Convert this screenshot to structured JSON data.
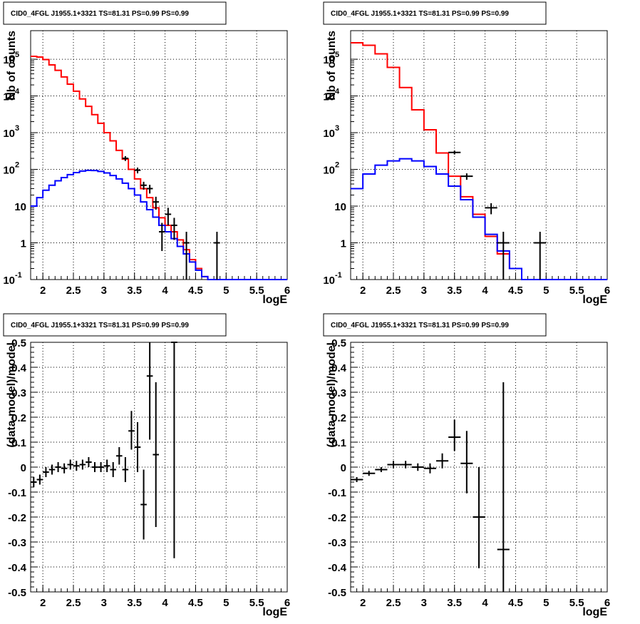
{
  "chart_data": [
    {
      "type": "line",
      "title": "CID0_4FGL J1955.1+3321 TS=81.31 PS=0.99 PS=0.99",
      "xlabel": "logE",
      "ylabel": "Nb of counts",
      "xlim": [
        1.8,
        6.0
      ],
      "ylim": [
        0.1,
        600000
      ],
      "yscale": "log",
      "grid": true,
      "x_ticks": [
        "2",
        "2.5",
        "3",
        "3.5",
        "4",
        "4.5",
        "5",
        "5.5",
        "6"
      ],
      "y_ticks": [
        "10^-1",
        "1",
        "10",
        "10^2",
        "10^3",
        "10^4",
        "10^5"
      ],
      "bin_edges": [
        1.8,
        1.9,
        2.0,
        2.1,
        2.2,
        2.3,
        2.4,
        2.5,
        2.6,
        2.7,
        2.8,
        2.9,
        3.0,
        3.1,
        3.2,
        3.3,
        3.4,
        3.5,
        3.6,
        3.7,
        3.8,
        3.9,
        4.0,
        4.1,
        4.2,
        4.3,
        4.4,
        4.5,
        4.6,
        4.7,
        4.8,
        4.9,
        5.0,
        5.1,
        5.2,
        5.3,
        5.4,
        5.5,
        5.6,
        5.7,
        5.8,
        5.9,
        6.0
      ],
      "series": [
        {
          "color": "#ff0000",
          "values": [
            120000,
            115000,
            98000,
            70000,
            50000,
            33000,
            21000,
            13500,
            8300,
            5200,
            3100,
            1800,
            1000,
            600,
            330,
            190,
            100,
            55,
            30,
            17,
            9,
            4.8,
            3.0,
            2.0,
            1.2,
            0.65,
            0.35,
            0.2,
            0.12,
            0.1,
            0.1,
            0.1,
            0.1,
            0.1,
            0.1,
            0.1,
            0.1,
            0.1,
            0.1,
            0.1,
            0.1,
            0.1
          ]
        },
        {
          "color": "#0000ff",
          "values": [
            10,
            17,
            27,
            37,
            49,
            60,
            72,
            82,
            90,
            94,
            93,
            88,
            80,
            68,
            55,
            42,
            30,
            20,
            13,
            8,
            5,
            3,
            2,
            1.3,
            0.8,
            0.5,
            0.3,
            0.18,
            0.12,
            0.1,
            0.1,
            0.1,
            0.1,
            0.1,
            0.1,
            0.1,
            0.1,
            0.1,
            0.1,
            0.1,
            0.1,
            0.1
          ]
        }
      ],
      "points": [
        {
          "x": 3.35,
          "y": 200,
          "lo": 170,
          "hi": 230
        },
        {
          "x": 3.55,
          "y": 95,
          "lo": 78,
          "hi": 112
        },
        {
          "x": 3.65,
          "y": 37,
          "lo": 28,
          "hi": 46
        },
        {
          "x": 3.75,
          "y": 30,
          "lo": 22,
          "hi": 38
        },
        {
          "x": 3.85,
          "y": 13,
          "lo": 8,
          "hi": 18
        },
        {
          "x": 3.95,
          "y": 2,
          "lo": 0.6,
          "hi": 3.5
        },
        {
          "x": 4.05,
          "y": 6,
          "lo": 3,
          "hi": 9
        },
        {
          "x": 4.15,
          "y": 3,
          "lo": 1.2,
          "hi": 4.8
        },
        {
          "x": 4.35,
          "y": 1,
          "lo": 0.1,
          "hi": 2
        },
        {
          "x": 4.85,
          "y": 1,
          "lo": 0.1,
          "hi": 2
        }
      ]
    },
    {
      "type": "line",
      "title": "CID0_4FGL J1955.1+3321 TS=81.31 PS=0.99 PS=0.99",
      "xlabel": "logE",
      "ylabel": "Nb of counts",
      "xlim": [
        1.8,
        6.0
      ],
      "ylim": [
        0.1,
        600000
      ],
      "yscale": "log",
      "grid": true,
      "x_ticks": [
        "2",
        "2.5",
        "3",
        "3.5",
        "4",
        "4.5",
        "5",
        "5.5",
        "6"
      ],
      "y_ticks": [
        "10^-1",
        "1",
        "10",
        "10^2",
        "10^3",
        "10^4",
        "10^5"
      ],
      "bin_edges": [
        1.8,
        2.0,
        2.2,
        2.4,
        2.6,
        2.8,
        3.0,
        3.2,
        3.4,
        3.6,
        3.8,
        4.0,
        4.2,
        4.4,
        4.6,
        4.8,
        5.0,
        5.2,
        5.4,
        5.6,
        5.8,
        6.0
      ],
      "series": [
        {
          "color": "#ff0000",
          "values": [
            280000,
            240000,
            140000,
            60000,
            17000,
            4200,
            1200,
            280,
            65,
            18,
            6,
            1.5,
            0.5,
            0.2,
            0.1,
            0.1,
            0.1,
            0.1,
            0.1,
            0.1,
            0.1
          ]
        },
        {
          "color": "#0000ff",
          "values": [
            30,
            75,
            130,
            170,
            195,
            170,
            120,
            75,
            35,
            15,
            5,
            1.7,
            0.6,
            0.2,
            0.1,
            0.1,
            0.1,
            0.1,
            0.1,
            0.1,
            0.1
          ]
        }
      ],
      "points": [
        {
          "x": 3.5,
          "y": 290,
          "lo": 255,
          "hi": 325
        },
        {
          "x": 3.7,
          "y": 65,
          "lo": 52,
          "hi": 78
        },
        {
          "x": 4.1,
          "y": 9,
          "lo": 6,
          "hi": 12
        },
        {
          "x": 4.3,
          "y": 1,
          "lo": 0.1,
          "hi": 2
        },
        {
          "x": 4.9,
          "y": 1,
          "lo": 0.1,
          "hi": 2
        }
      ]
    },
    {
      "type": "scatter",
      "title": "CID0_4FGL J1955.1+3321 TS=81.31 PS=0.99 PS=0.99",
      "xlabel": "logE",
      "ylabel": "(data-model)/model",
      "xlim": [
        1.8,
        6.0
      ],
      "ylim": [
        -0.5,
        0.5
      ],
      "grid": true,
      "x_ticks": [
        "2",
        "2.5",
        "3",
        "3.5",
        "4",
        "4.5",
        "5",
        "5.5",
        "6"
      ],
      "y_ticks": [
        "-0.5",
        "-0.4",
        "-0.3",
        "-0.2",
        "-0.1",
        "0",
        "0.1",
        "0.2",
        "0.3",
        "0.4",
        "0.5"
      ],
      "points": [
        {
          "x": 1.85,
          "y": -0.06,
          "lo": -0.08,
          "hi": -0.04,
          "xw": 0.05
        },
        {
          "x": 1.95,
          "y": -0.05,
          "lo": -0.07,
          "hi": -0.03,
          "xw": 0.05
        },
        {
          "x": 2.05,
          "y": -0.02,
          "lo": -0.04,
          "hi": 0.0,
          "xw": 0.05
        },
        {
          "x": 2.15,
          "y": -0.01,
          "lo": -0.03,
          "hi": 0.01,
          "xw": 0.05
        },
        {
          "x": 2.25,
          "y": 0.0,
          "lo": -0.02,
          "hi": 0.02,
          "xw": 0.05
        },
        {
          "x": 2.35,
          "y": -0.005,
          "lo": -0.025,
          "hi": 0.015,
          "xw": 0.05
        },
        {
          "x": 2.45,
          "y": 0.01,
          "lo": -0.01,
          "hi": 0.03,
          "xw": 0.05
        },
        {
          "x": 2.55,
          "y": 0.005,
          "lo": -0.015,
          "hi": 0.025,
          "xw": 0.05
        },
        {
          "x": 2.65,
          "y": 0.01,
          "lo": -0.01,
          "hi": 0.03,
          "xw": 0.05
        },
        {
          "x": 2.75,
          "y": 0.02,
          "lo": 0.0,
          "hi": 0.04,
          "xw": 0.05
        },
        {
          "x": 2.85,
          "y": 0.0,
          "lo": -0.02,
          "hi": 0.02,
          "xw": 0.05
        },
        {
          "x": 2.95,
          "y": 0.0,
          "lo": -0.02,
          "hi": 0.02,
          "xw": 0.05
        },
        {
          "x": 3.05,
          "y": 0.005,
          "lo": -0.02,
          "hi": 0.03,
          "xw": 0.05
        },
        {
          "x": 3.15,
          "y": -0.01,
          "lo": -0.04,
          "hi": 0.02,
          "xw": 0.05
        },
        {
          "x": 3.25,
          "y": 0.045,
          "lo": 0.01,
          "hi": 0.08,
          "xw": 0.05
        },
        {
          "x": 3.35,
          "y": -0.01,
          "lo": -0.06,
          "hi": 0.04,
          "xw": 0.05
        },
        {
          "x": 3.45,
          "y": 0.145,
          "lo": 0.07,
          "hi": 0.225,
          "xw": 0.05
        },
        {
          "x": 3.55,
          "y": 0.08,
          "lo": -0.02,
          "hi": 0.18,
          "xw": 0.05
        },
        {
          "x": 3.65,
          "y": -0.15,
          "lo": -0.29,
          "hi": -0.01,
          "xw": 0.05
        },
        {
          "x": 3.75,
          "y": 0.365,
          "lo": 0.11,
          "hi": 0.5,
          "xw": 0.05
        },
        {
          "x": 3.85,
          "y": 0.05,
          "lo": -0.24,
          "hi": 0.34,
          "xw": 0.05
        },
        {
          "x": 4.15,
          "y": 0.5,
          "lo": -0.365,
          "hi": 0.5,
          "xw": 0.05
        }
      ]
    },
    {
      "type": "scatter",
      "title": "CID0_4FGL J1955.1+3321 TS=81.31 PS=0.99 PS=0.99",
      "xlabel": "logE",
      "ylabel": "(data-model)/model",
      "xlim": [
        1.8,
        6.0
      ],
      "ylim": [
        -0.5,
        0.5
      ],
      "grid": true,
      "x_ticks": [
        "2",
        "2.5",
        "3",
        "3.5",
        "4",
        "4.5",
        "5",
        "5.5",
        "6"
      ],
      "y_ticks": [
        "-0.5",
        "-0.4",
        "-0.3",
        "-0.2",
        "-0.1",
        "0",
        "0.1",
        "0.2",
        "0.3",
        "0.4",
        "0.5"
      ],
      "points": [
        {
          "x": 1.9,
          "y": -0.05,
          "lo": -0.06,
          "hi": -0.04,
          "xw": 0.1
        },
        {
          "x": 2.1,
          "y": -0.025,
          "lo": -0.035,
          "hi": -0.015,
          "xw": 0.1
        },
        {
          "x": 2.3,
          "y": -0.01,
          "lo": -0.02,
          "hi": 0.0,
          "xw": 0.1
        },
        {
          "x": 2.5,
          "y": 0.01,
          "lo": -0.005,
          "hi": 0.025,
          "xw": 0.1
        },
        {
          "x": 2.7,
          "y": 0.01,
          "lo": -0.005,
          "hi": 0.025,
          "xw": 0.1
        },
        {
          "x": 2.9,
          "y": 0.0,
          "lo": -0.015,
          "hi": 0.015,
          "xw": 0.1
        },
        {
          "x": 3.1,
          "y": -0.005,
          "lo": -0.025,
          "hi": 0.015,
          "xw": 0.1
        },
        {
          "x": 3.3,
          "y": 0.025,
          "lo": -0.005,
          "hi": 0.055,
          "xw": 0.1
        },
        {
          "x": 3.5,
          "y": 0.12,
          "lo": 0.065,
          "hi": 0.19,
          "xw": 0.1
        },
        {
          "x": 3.7,
          "y": 0.015,
          "lo": -0.105,
          "hi": 0.145,
          "xw": 0.1
        },
        {
          "x": 3.9,
          "y": -0.2,
          "lo": -0.405,
          "hi": 0.0,
          "xw": 0.1
        },
        {
          "x": 4.3,
          "y": -0.33,
          "lo": -0.5,
          "hi": 0.34,
          "xw": 0.1
        }
      ]
    }
  ]
}
